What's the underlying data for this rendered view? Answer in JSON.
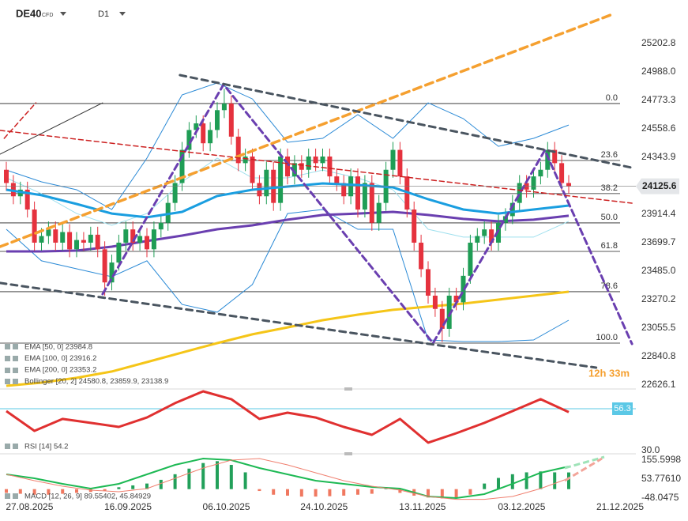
{
  "header": {
    "symbol": "DE40",
    "instrument_type": "CFD",
    "timeframe": "D1"
  },
  "chart_data": [
    {
      "type": "candlestick",
      "xlim": [
        -0.9,
        89.55
      ],
      "ylim": [
        22596,
        25531
      ],
      "xticks": [
        {
          "value": 3.3,
          "label": "27.08.2025"
        },
        {
          "value": 17.3,
          "label": "16.09.2025"
        },
        {
          "value": 31.3,
          "label": "06.10.2025"
        },
        {
          "value": 45.2,
          "label": "24.10.2025"
        },
        {
          "value": 59.2,
          "label": "13.11.2025"
        },
        {
          "value": 73.3,
          "label": "03.12.2025"
        },
        {
          "value": 87.3,
          "label": "21.12.2025"
        }
      ],
      "yticks": [
        25202.8,
        {
          "value": 24988,
          "label": "24988.0"
        },
        24773.3,
        24558.6,
        24343.9,
        23914.4,
        23699.7,
        {
          "value": 23485,
          "label": "23485.0"
        },
        23270.2,
        23055.5,
        22840.8,
        22626.1
      ],
      "last_price": 24125.6,
      "timer": "12h 33m",
      "candle_colors": {
        "up": "#1f9d55",
        "down": "#e5323e"
      },
      "candles": {
        "open": [
          24250,
          24150,
          24050,
          24100,
          23950,
          23700,
          23750,
          23800,
          23700,
          23780,
          23650,
          23720,
          23700,
          23760,
          23650,
          23400,
          23550,
          23700,
          23800,
          23700,
          23750,
          23650,
          23800,
          23850,
          24000,
          24150,
          24400,
          24550,
          24600,
          24450,
          24550,
          24700,
          24750,
          24500,
          24300,
          24350,
          24150,
          24050,
          24250,
          24000,
          24350,
          24200,
          24300,
          24250,
          24350,
          24300,
          24350,
          24200,
          24150,
          24050,
          24200,
          23950,
          24150,
          23850,
          24000,
          24250,
          24400,
          24200,
          23950,
          23700,
          23500,
          23300,
          23200,
          23050,
          23300,
          23250,
          23450,
          23700,
          23750,
          23800,
          23700,
          23850,
          23900,
          24000,
          24150,
          24100,
          24200,
          24250,
          24400,
          24300,
          24150
        ],
        "high": [
          24310,
          24210,
          24160,
          24160,
          24010,
          23810,
          23860,
          23860,
          23840,
          23840,
          23780,
          23780,
          23820,
          23820,
          23710,
          23610,
          23760,
          23860,
          23860,
          23810,
          23810,
          23860,
          23910,
          24060,
          24210,
          24460,
          24610,
          24660,
          24660,
          24610,
          24760,
          24860,
          24810,
          24560,
          24410,
          24410,
          24210,
          24310,
          24310,
          24410,
          24410,
          24360,
          24360,
          24410,
          24410,
          24410,
          24410,
          24260,
          24210,
          24260,
          24260,
          24210,
          24210,
          24060,
          24310,
          24460,
          24460,
          24260,
          24010,
          23760,
          23560,
          23360,
          23260,
          23360,
          23360,
          23510,
          23760,
          23810,
          23860,
          23860,
          23910,
          23960,
          24060,
          24210,
          24210,
          24260,
          24310,
          24460,
          24460,
          24360,
          24210
        ],
        "low": [
          24090,
          23990,
          23990,
          23890,
          23640,
          23640,
          23690,
          23640,
          23640,
          23590,
          23590,
          23640,
          23640,
          23590,
          23300,
          23340,
          23490,
          23640,
          23640,
          23640,
          23590,
          23590,
          23740,
          23790,
          23940,
          24090,
          24340,
          24490,
          24390,
          24390,
          24490,
          24640,
          24440,
          24240,
          24240,
          24090,
          23990,
          23990,
          23940,
          23940,
          24140,
          24140,
          24190,
          24190,
          24240,
          24240,
          24140,
          24090,
          23990,
          23990,
          23890,
          23890,
          23790,
          23790,
          23940,
          24190,
          24140,
          23890,
          23640,
          23440,
          23240,
          23140,
          22950,
          22990,
          23190,
          23190,
          23390,
          23640,
          23690,
          23640,
          23640,
          23790,
          23840,
          23940,
          24040,
          24040,
          24140,
          24190,
          24240,
          24090,
          24070
        ],
        "close": [
          24150,
          24050,
          24100,
          23950,
          23700,
          23750,
          23800,
          23700,
          23780,
          23650,
          23720,
          23700,
          23760,
          23650,
          23400,
          23550,
          23700,
          23800,
          23700,
          23750,
          23650,
          23800,
          23850,
          24000,
          24150,
          24400,
          24550,
          24600,
          24450,
          24550,
          24700,
          24750,
          24500,
          24300,
          24350,
          24150,
          24050,
          24250,
          24000,
          24350,
          24200,
          24300,
          24250,
          24350,
          24300,
          24350,
          24200,
          24150,
          24050,
          24200,
          23950,
          24150,
          23850,
          24000,
          24250,
          24400,
          24200,
          23950,
          23700,
          23500,
          23300,
          23200,
          23050,
          23300,
          23250,
          23450,
          23700,
          23750,
          23800,
          23700,
          23850,
          23900,
          24000,
          24150,
          24100,
          24200,
          24250,
          24400,
          24300,
          24150,
          24125.6
        ]
      },
      "line_index": [
        0,
        5,
        10,
        15,
        20,
        25,
        30,
        35,
        40,
        45,
        50,
        55,
        60,
        65,
        70,
        75,
        80
      ],
      "lines": [
        {
          "color": "#2b8ad6",
          "width": 1,
          "values": [
            24248,
            24159,
            24099,
            23950,
            24338,
            24815,
            24905,
            24785,
            24457,
            24487,
            24666,
            24487,
            24755,
            24636,
            24427,
            24487,
            24588
          ]
        },
        {
          "color": "#9fe0ee",
          "width": 1,
          "values": [
            24189,
            24070,
            23920,
            23831,
            23920,
            24159,
            24338,
            24189,
            24189,
            24248,
            24189,
            24099,
            23801,
            23742,
            23742,
            23742,
            23861
          ]
        },
        {
          "color": "#2b8ad6",
          "width": 1,
          "values": [
            23801,
            23563,
            23503,
            23443,
            23563,
            23234,
            23175,
            23384,
            23920,
            23950,
            23801,
            23801,
            22966,
            22954,
            22954,
            22966,
            23115
          ]
        },
        {
          "color": "#f5c518",
          "width": 3,
          "values": [
            22620,
            22644,
            22680,
            22728,
            22799,
            22871,
            22942,
            23008,
            23061,
            23115,
            23157,
            23193,
            23217,
            23240,
            23270,
            23300,
            23330
          ]
        },
        {
          "color": "#6a3fb0",
          "width": 3,
          "values": [
            23634,
            23634,
            23640,
            23670,
            23712,
            23753,
            23801,
            23831,
            23873,
            23909,
            23920,
            23932,
            23909,
            23879,
            23861,
            23873,
            23903
          ]
        },
        {
          "color": "#1a9ee0",
          "width": 3,
          "values": [
            24099,
            24058,
            23992,
            23920,
            23891,
            23932,
            24052,
            24099,
            24123,
            24147,
            24135,
            24117,
            24028,
            23950,
            23920,
            23950,
            23980
          ]
        }
      ],
      "fib_levels": [
        {
          "label": "0.0",
          "price": 24750
        },
        {
          "label": "23.6",
          "price": 24320
        },
        {
          "label": "38.2",
          "price": 24070
        },
        {
          "label": "50.0",
          "price": 23849
        },
        {
          "label": "61.8",
          "price": 23634
        },
        {
          "label": "78.6",
          "price": 23330
        },
        {
          "label": "100.0",
          "price": 22942
        }
      ],
      "drawings": [
        {
          "color": "#6a3fb0",
          "width": 3,
          "dash": "8 5",
          "points": [
            [
              13.7,
              23312
            ],
            [
              30.9,
              24893
            ],
            [
              60.7,
              22942
            ],
            [
              76.6,
              24397
            ],
            [
              89,
              22936
            ]
          ]
        },
        {
          "color": "#f5a030",
          "width": 3.5,
          "dash": "10 6",
          "points": [
            [
              -0.9,
              23670
            ],
            [
              86.2,
              25423
            ]
          ]
        },
        {
          "color": "#4a5560",
          "width": 3,
          "dash": "8 6",
          "points": [
            [
              24.7,
              24964
            ],
            [
              89,
              24266
            ]
          ]
        },
        {
          "color": "#4a5560",
          "width": 3,
          "dash": "8 6",
          "points": [
            [
              -0.9,
              23396
            ],
            [
              83.9,
              22757
            ]
          ]
        },
        {
          "color": "#cc2020",
          "width": 1.5,
          "dash": "6 4",
          "points": [
            [
              -0.9,
              24547
            ],
            [
              89,
              23998
            ]
          ]
        },
        {
          "color": "#cc2020",
          "width": 1.5,
          "dash": "6 4",
          "points": [
            [
              -0.3,
              24487
            ],
            [
              4.2,
              24755
            ]
          ]
        },
        {
          "color": "#333333",
          "width": 1,
          "dash": "none",
          "points": [
            [
              -0.9,
              24368
            ],
            [
              13.7,
              24755
            ]
          ]
        }
      ],
      "legend": [
        "EMA [50, 0] 23984.8",
        "EMA [100, 0] 23916.2",
        "EMA [200, 0] 23353.2",
        "Bollinger [20, 2] 24580.8, 23859.9, 23138.9"
      ]
    },
    {
      "type": "line",
      "label": "RSI [14] 54.2",
      "color": "#e03030",
      "xlim": [
        -0.9,
        89.55
      ],
      "ylim": [
        29,
        68.7
      ],
      "yticks": [
        {
          "value": 30,
          "label": "30.0"
        }
      ],
      "marker": 56.3,
      "marker_color": "#5bc8e6",
      "x": [
        0,
        4,
        8,
        12,
        16,
        20,
        24,
        28,
        32,
        36,
        40,
        44,
        48,
        52,
        56,
        60,
        64,
        68,
        72,
        76,
        80
      ],
      "values": [
        54.8,
        42.4,
        49.9,
        47.4,
        44.9,
        50.8,
        59.8,
        67.2,
        62.3,
        49.9,
        53.8,
        50.8,
        44.9,
        39.9,
        49.9,
        35,
        40.9,
        47.4,
        54.8,
        62.3,
        54.2
      ]
    },
    {
      "type": "macd",
      "label": "MACD [12, 26, 9] 89.55402, 45.84929",
      "xlim": [
        -0.9,
        89.55
      ],
      "ylim": [
        -56.5,
        185.3
      ],
      "yticks": [
        155.5998,
        {
          "value": 53.7761,
          "label": "53.77610"
        },
        -48.0475
      ],
      "bar_colors": {
        "up": "#22a05a",
        "down": "#f07860"
      },
      "hist_index": [
        0,
        2,
        4,
        6,
        8,
        10,
        12,
        14,
        16,
        18,
        20,
        22,
        24,
        26,
        28,
        30,
        32,
        34,
        36,
        38,
        40,
        42,
        44,
        46,
        48,
        50,
        52,
        54,
        56,
        58,
        60,
        62,
        64,
        66,
        68,
        70,
        72,
        74,
        76,
        78,
        80
      ],
      "histogram": [
        -20,
        -25,
        -30,
        -30,
        -25,
        -20,
        -15,
        -10,
        10,
        20,
        30,
        50,
        80,
        110,
        140,
        150,
        130,
        90,
        -10,
        -30,
        -35,
        -40,
        -40,
        -38,
        -35,
        -30,
        -25,
        10,
        -20,
        -35,
        -45,
        -50,
        -45,
        -30,
        30,
        60,
        80,
        90,
        95,
        90,
        89.55
      ],
      "line_index": [
        0,
        4,
        8,
        12,
        16,
        20,
        24,
        28,
        32,
        36,
        40,
        44,
        48,
        52,
        56,
        60,
        64,
        68,
        72,
        76,
        80
      ],
      "lines": [
        {
          "color": "#1db954",
          "values": [
            79.2,
            58,
            28.3,
            2.9,
            28.3,
            79.2,
            130.1,
            164.1,
            155.6,
            113.2,
            79.2,
            45.3,
            28.3,
            11.4,
            2.9,
            -39.5,
            -48,
            -26.8,
            28.3,
            87.7,
            121.7
          ]
        },
        {
          "color": "#f08070",
          "values": [
            79.2,
            45.3,
            15.6,
            -5.6,
            -14.1,
            2.9,
            58,
            113.2,
            155.6,
            164.1,
            130.1,
            87.7,
            45.3,
            15.6,
            -5.6,
            -39.5,
            -55,
            -55,
            -39.5,
            2.9,
            58
          ]
        }
      ]
    }
  ]
}
